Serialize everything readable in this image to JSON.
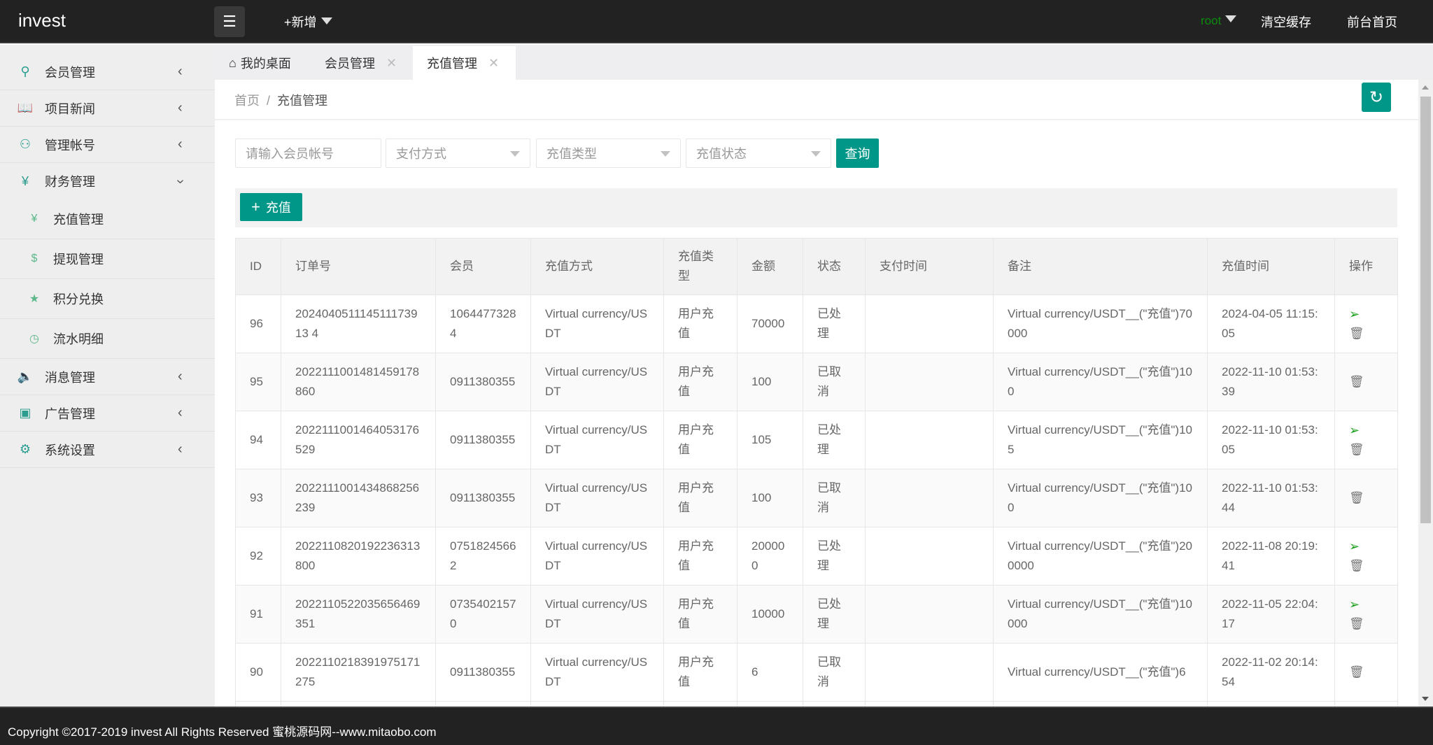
{
  "header": {
    "logo": "invest",
    "menu_icon": "list-icon",
    "add_label": "+新增",
    "user": "root",
    "clear_cache": "清空缓存",
    "front_home": "前台首页"
  },
  "sidebar": {
    "items": [
      {
        "label": "会员管理",
        "icon": "user-icon"
      },
      {
        "label": "项目新闻",
        "icon": "book-icon"
      },
      {
        "label": "管理帐号",
        "icon": "users-icon"
      },
      {
        "label": "财务管理",
        "icon": "yen-icon",
        "expanded": true
      },
      {
        "label": "消息管理",
        "icon": "speaker-icon"
      },
      {
        "label": "广告管理",
        "icon": "image-icon"
      },
      {
        "label": "系统设置",
        "icon": "gear-icon"
      }
    ],
    "sub_items": [
      {
        "label": "充值管理",
        "icon": "yen-icon"
      },
      {
        "label": "提现管理",
        "icon": "dollar-icon"
      },
      {
        "label": "积分兑换",
        "icon": "star-icon"
      },
      {
        "label": "流水明细",
        "icon": "clock-icon"
      }
    ]
  },
  "tabs": [
    {
      "label": "我的桌面"
    },
    {
      "label": "会员管理"
    },
    {
      "label": "充值管理",
      "active": true
    }
  ],
  "breadcrumb": {
    "home": "首页",
    "sep": "/",
    "current": "充值管理"
  },
  "filters": {
    "member_placeholder": "请输入会员帐号",
    "pay_method": "支付方式",
    "recharge_type": "充值类型",
    "recharge_status": "充值状态",
    "query": "查询"
  },
  "toolbar": {
    "add_label": "充值"
  },
  "colors": {
    "accent": "#009688",
    "header_bg": "#222222",
    "sidebar_bg": "#eeeeee",
    "user_green": "#0c8a0c"
  },
  "table": {
    "headers": [
      "ID",
      "订单号",
      "会员",
      "充值方式",
      "充值类型",
      "金额",
      "状态",
      "支付时间",
      "备注",
      "充值时间",
      "操作"
    ],
    "rows": [
      {
        "id": "96",
        "order": "20240405111451117391 34",
        "order_text": "202404051114511173913 4",
        "member": "10644773284",
        "method": "Virtual currency/USDT",
        "type": "用户充值",
        "amount": "70000",
        "status": "已处理",
        "pay_time": "",
        "note": "Virtual currency/USDT__(\"充值\")70000",
        "time": "2024-04-05 11:15:05",
        "send": true
      },
      {
        "id": "95",
        "order_text": "2022111001481459178860",
        "member": "0911380355",
        "method": "Virtual currency/USDT",
        "type": "用户充值",
        "amount": "100",
        "status": "已取消",
        "pay_time": "",
        "note": "Virtual currency/USDT__(\"充值\")100",
        "time": "2022-11-10 01:53:39",
        "send": false
      },
      {
        "id": "94",
        "order_text": "2022111001464053176529",
        "member": "0911380355",
        "method": "Virtual currency/USDT",
        "type": "用户充值",
        "amount": "105",
        "status": "已处理",
        "pay_time": "",
        "note": "Virtual currency/USDT__(\"充值\")105",
        "time": "2022-11-10 01:53:05",
        "send": true
      },
      {
        "id": "93",
        "order_text": "2022111001434868256239",
        "member": "0911380355",
        "method": "Virtual currency/USDT",
        "type": "用户充值",
        "amount": "100",
        "status": "已取消",
        "pay_time": "",
        "note": "Virtual currency/USDT__(\"充值\")100",
        "time": "2022-11-10 01:53:44",
        "send": false
      },
      {
        "id": "92",
        "order_text": "2022110820192236313800",
        "member": "07518245662",
        "method": "Virtual currency/USDT",
        "type": "用户充值",
        "amount": "200000",
        "status": "已处理",
        "pay_time": "",
        "note": "Virtual currency/USDT__(\"充值\")200000",
        "time": "2022-11-08 20:19:41",
        "send": true
      },
      {
        "id": "91",
        "order_text": "2022110522035656469351",
        "member": "07354021570",
        "method": "Virtual currency/USDT",
        "type": "用户充值",
        "amount": "10000",
        "status": "已处理",
        "pay_time": "",
        "note": "Virtual currency/USDT__(\"充值\")10000",
        "time": "2022-11-05 22:04:17",
        "send": true
      },
      {
        "id": "90",
        "order_text": "2022110218391975171275",
        "member": "0911380355",
        "method": "Virtual currency/USDT",
        "type": "用户充值",
        "amount": "6",
        "status": "已取消",
        "pay_time": "",
        "note": "Virtual currency/USDT__(\"充值\")6",
        "time": "2022-11-02 20:14:54",
        "send": false
      }
    ]
  },
  "footer": {
    "copyright": "Copyright ©2017-2019 invest All Rights Reserved 蜜桃源码网--www.mitaobo.com"
  }
}
